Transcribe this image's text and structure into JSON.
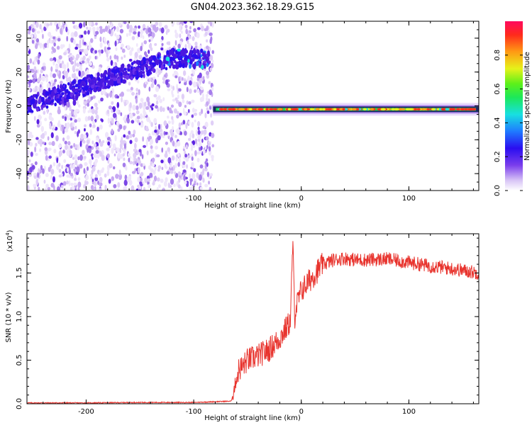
{
  "title": "GN04.2023.362.18.29.G15",
  "chart_data": [
    {
      "type": "heatmap",
      "xlabel": "Height of straight line (km)",
      "ylabel": "Frequency (Hz)",
      "xlim": [
        -255,
        165
      ],
      "ylim": [
        -50,
        50
      ],
      "x_ticks": [
        -200,
        -100,
        0,
        100
      ],
      "y_ticks": [
        -40,
        -20,
        0,
        20,
        40
      ],
      "colorbar": {
        "label": "Normalized spectral amplitude",
        "range": [
          0,
          1
        ],
        "ticks": [
          "0.0",
          "0.2",
          "0.4",
          "0.6",
          "0.8"
        ]
      },
      "features": [
        {
          "name": "noise",
          "x_range": [
            -255,
            -82
          ],
          "freq_range": [
            -50,
            50
          ]
        },
        {
          "name": "drifting band",
          "points": [
            [
              -255,
              0
            ],
            [
              -200,
              12
            ],
            [
              -160,
              20
            ],
            [
              -120,
              28
            ],
            [
              -85,
              28
            ]
          ]
        },
        {
          "name": "carrier line",
          "x_range": [
            -82,
            165
          ],
          "frequency": -2
        }
      ]
    },
    {
      "type": "line",
      "xlabel": "Height of straight line (km)",
      "ylabel": "SNR (10 * v/v)",
      "ylabel_exponent": "(x10^4)",
      "xlim": [
        -255,
        165
      ],
      "ylim": [
        0,
        1.95
      ],
      "x_ticks": [
        -200,
        -100,
        0,
        100
      ],
      "y_ticks": [
        "0.0",
        "0.5",
        "1.0",
        "1.5"
      ],
      "color": "#e8342e",
      "series": [
        {
          "x": [
            -255,
            -200,
            -150,
            -100,
            -65,
            -60,
            -58,
            -55,
            -50,
            -40,
            -30,
            -20,
            -15,
            -10,
            -8,
            -6,
            -5,
            0,
            10,
            20,
            30,
            40,
            50,
            60,
            80,
            100,
            120,
            140,
            165
          ],
          "values": [
            0.01,
            0.01,
            0.015,
            0.015,
            0.03,
            0.3,
            0.4,
            0.42,
            0.5,
            0.55,
            0.62,
            0.75,
            0.85,
            0.95,
            1.85,
            1.0,
            1.1,
            1.3,
            1.45,
            1.6,
            1.65,
            1.67,
            1.65,
            1.65,
            1.66,
            1.62,
            1.58,
            1.55,
            1.5
          ]
        }
      ]
    }
  ],
  "superscript": "4"
}
